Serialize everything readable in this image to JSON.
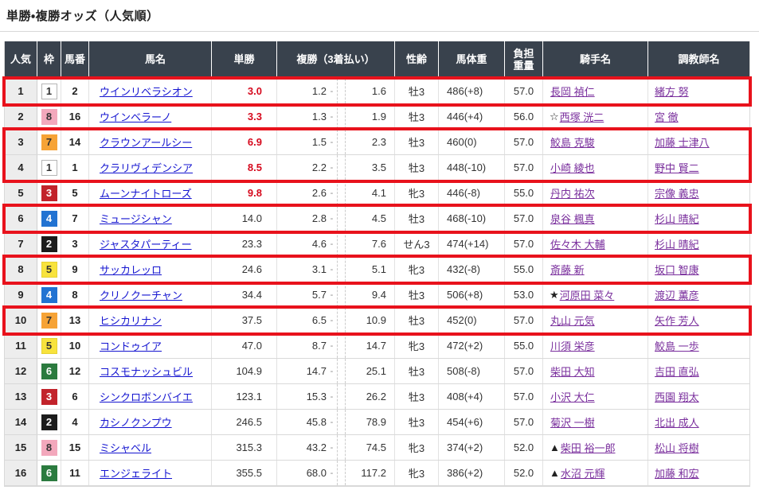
{
  "page": {
    "title": "単勝・複勝オッズ（人気順）"
  },
  "colors": {
    "header_bg": "#39424d",
    "highlight_box_red": "#e8121c",
    "hot_odds_red": "#d60a1e",
    "horse_link_blue": "#1515d0",
    "people_link_purple": "#7a2f9d"
  },
  "table": {
    "headers": {
      "rank": "人気",
      "waku": "枠",
      "num": "馬番",
      "name": "馬名",
      "win": "単勝",
      "place": "複勝（3着払い）",
      "sex_age": "性齢",
      "weight": "馬体重",
      "load_line1": "負担",
      "load_line2": "重量",
      "jockey": "騎手名",
      "trainer": "調教師名"
    },
    "waku_colors": {
      "1": {
        "bg": "#ffffff",
        "fg": "#333333",
        "border": "#b5b5b5"
      },
      "2": {
        "bg": "#1c1c1c",
        "fg": "#ffffff",
        "border": "#1c1c1c"
      },
      "3": {
        "bg": "#c2232b",
        "fg": "#ffffff",
        "border": "#c2232b"
      },
      "4": {
        "bg": "#2273d2",
        "fg": "#ffffff",
        "border": "#2273d2"
      },
      "5": {
        "bg": "#f8e33d",
        "fg": "#333333",
        "border": "#e6d232"
      },
      "6": {
        "bg": "#2b7b3f",
        "fg": "#ffffff",
        "border": "#2b7b3f"
      },
      "7": {
        "bg": "#f6a336",
        "fg": "#333333",
        "border": "#f6a336"
      },
      "8": {
        "bg": "#f3a8bc",
        "fg": "#333333",
        "border": "#f3a8bc"
      }
    },
    "rows": [
      {
        "rank": "1",
        "waku": "1",
        "num": "2",
        "name": "ウインリベラシオン",
        "win": "3.0",
        "win_hot": true,
        "place_low": "1.2",
        "place_high": "1.6",
        "sex_age": "牡3",
        "weight": "486(+8)",
        "load": "57.0",
        "jockey_mark": "",
        "jockey": "長岡 禎仁",
        "trainer": "緒方 努",
        "box": "g1"
      },
      {
        "rank": "2",
        "waku": "8",
        "num": "16",
        "name": "ウインベラーノ",
        "win": "3.3",
        "win_hot": true,
        "place_low": "1.3",
        "place_high": "1.9",
        "sex_age": "牡3",
        "weight": "446(+4)",
        "load": "56.0",
        "jockey_mark": "☆",
        "jockey": "西塚 洸二",
        "trainer": "宮 徹",
        "box": null
      },
      {
        "rank": "3",
        "waku": "7",
        "num": "14",
        "name": "クラウンアールシー",
        "win": "6.9",
        "win_hot": true,
        "place_low": "1.5",
        "place_high": "2.3",
        "sex_age": "牡3",
        "weight": "460(0)",
        "load": "57.0",
        "jockey_mark": "",
        "jockey": "鮫島 克駿",
        "trainer": "加藤 士津八",
        "box": "g2"
      },
      {
        "rank": "4",
        "waku": "1",
        "num": "1",
        "name": "クラリヴィデンシア",
        "win": "8.5",
        "win_hot": true,
        "place_low": "2.2",
        "place_high": "3.5",
        "sex_age": "牡3",
        "weight": "448(-10)",
        "load": "57.0",
        "jockey_mark": "",
        "jockey": "小崎 綾也",
        "trainer": "野中 賢二",
        "box": "g2"
      },
      {
        "rank": "5",
        "waku": "3",
        "num": "5",
        "name": "ムーンナイトローズ",
        "win": "9.8",
        "win_hot": true,
        "place_low": "2.6",
        "place_high": "4.1",
        "sex_age": "牝3",
        "weight": "446(-8)",
        "load": "55.0",
        "jockey_mark": "",
        "jockey": "丹内 祐次",
        "trainer": "宗像 義忠",
        "box": null
      },
      {
        "rank": "6",
        "waku": "4",
        "num": "7",
        "name": "ミュージシャン",
        "win": "14.0",
        "win_hot": false,
        "place_low": "2.8",
        "place_high": "4.5",
        "sex_age": "牡3",
        "weight": "468(-10)",
        "load": "57.0",
        "jockey_mark": "",
        "jockey": "泉谷 楓真",
        "trainer": "杉山 晴紀",
        "box": "g3"
      },
      {
        "rank": "7",
        "waku": "2",
        "num": "3",
        "name": "ジャスタパーティー",
        "win": "23.3",
        "win_hot": false,
        "place_low": "4.6",
        "place_high": "7.6",
        "sex_age": "せん3",
        "weight": "474(+14)",
        "load": "57.0",
        "jockey_mark": "",
        "jockey": "佐々木 大輔",
        "trainer": "杉山 晴紀",
        "box": null
      },
      {
        "rank": "8",
        "waku": "5",
        "num": "9",
        "name": "サッカレッロ",
        "win": "24.6",
        "win_hot": false,
        "place_low": "3.1",
        "place_high": "5.1",
        "sex_age": "牝3",
        "weight": "432(-8)",
        "load": "55.0",
        "jockey_mark": "",
        "jockey": "斎藤 新",
        "trainer": "坂口 智康",
        "box": "g4"
      },
      {
        "rank": "9",
        "waku": "4",
        "num": "8",
        "name": "クリノクーチャン",
        "win": "34.4",
        "win_hot": false,
        "place_low": "5.7",
        "place_high": "9.4",
        "sex_age": "牡3",
        "weight": "506(+8)",
        "load": "53.0",
        "jockey_mark": "★",
        "jockey": "河原田 菜々",
        "trainer": "渡辺 薫彦",
        "box": null
      },
      {
        "rank": "10",
        "waku": "7",
        "num": "13",
        "name": "ヒシカリナン",
        "win": "37.5",
        "win_hot": false,
        "place_low": "6.5",
        "place_high": "10.9",
        "sex_age": "牡3",
        "weight": "452(0)",
        "load": "57.0",
        "jockey_mark": "",
        "jockey": "丸山 元気",
        "trainer": "矢作 芳人",
        "box": "g5"
      },
      {
        "rank": "11",
        "waku": "5",
        "num": "10",
        "name": "コンドゥイア",
        "win": "47.0",
        "win_hot": false,
        "place_low": "8.7",
        "place_high": "14.7",
        "sex_age": "牝3",
        "weight": "472(+2)",
        "load": "55.0",
        "jockey_mark": "",
        "jockey": "川須 栄彦",
        "trainer": "鮫島 一歩",
        "box": null
      },
      {
        "rank": "12",
        "waku": "6",
        "num": "12",
        "name": "コスモナッシュビル",
        "win": "104.9",
        "win_hot": false,
        "place_low": "14.7",
        "place_high": "25.1",
        "sex_age": "牡3",
        "weight": "508(-8)",
        "load": "57.0",
        "jockey_mark": "",
        "jockey": "柴田 大知",
        "trainer": "吉田 直弘",
        "box": null
      },
      {
        "rank": "13",
        "waku": "3",
        "num": "6",
        "name": "シンクロボンバイエ",
        "win": "123.1",
        "win_hot": false,
        "place_low": "15.3",
        "place_high": "26.2",
        "sex_age": "牡3",
        "weight": "408(+4)",
        "load": "57.0",
        "jockey_mark": "",
        "jockey": "小沢 大仁",
        "trainer": "西園 翔太",
        "box": null
      },
      {
        "rank": "14",
        "waku": "2",
        "num": "4",
        "name": "カシノクンプウ",
        "win": "246.5",
        "win_hot": false,
        "place_low": "45.8",
        "place_high": "78.9",
        "sex_age": "牡3",
        "weight": "454(+6)",
        "load": "57.0",
        "jockey_mark": "",
        "jockey": "菊沢 一樹",
        "trainer": "北出 成人",
        "box": null
      },
      {
        "rank": "15",
        "waku": "8",
        "num": "15",
        "name": "ミシャベル",
        "win": "315.3",
        "win_hot": false,
        "place_low": "43.2",
        "place_high": "74.5",
        "sex_age": "牝3",
        "weight": "374(+2)",
        "load": "52.0",
        "jockey_mark": "▲",
        "jockey": "柴田 裕一郎",
        "trainer": "松山 将樹",
        "box": null
      },
      {
        "rank": "16",
        "waku": "6",
        "num": "11",
        "name": "エンジェライト",
        "win": "355.5",
        "win_hot": false,
        "place_low": "68.0",
        "place_high": "117.2",
        "sex_age": "牝3",
        "weight": "386(+2)",
        "load": "52.0",
        "jockey_mark": "▲",
        "jockey": "水沼 元輝",
        "trainer": "加藤 和宏",
        "box": null
      }
    ]
  }
}
